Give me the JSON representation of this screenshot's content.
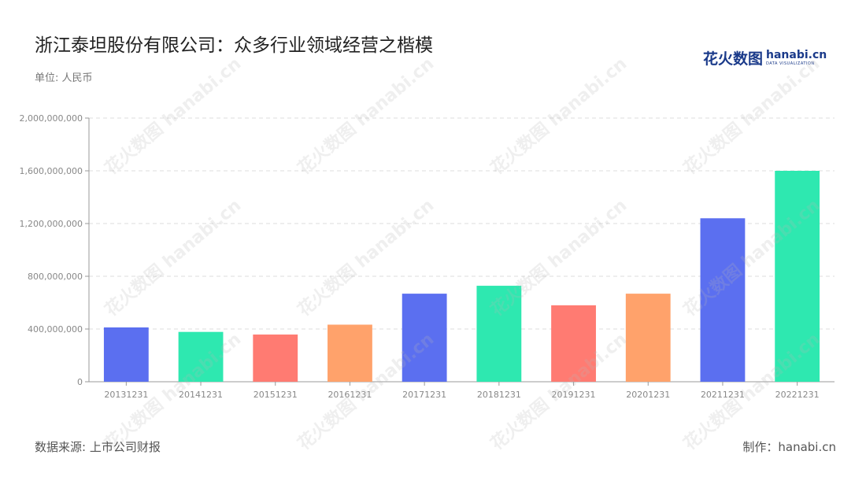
{
  "title": "浙江泰坦股份有限公司：众多行业领域经营之楷模",
  "unit_label": "单位: 人民币",
  "logo": {
    "cn": "花火数图",
    "en": "hanabi.cn",
    "sub": "DATA VISUALIZATION",
    "color": "#1a3a8a"
  },
  "footer": {
    "source": "数据来源: 上市公司财报",
    "credit": "制作：hanabi.cn"
  },
  "chart_data": {
    "type": "bar",
    "categories": [
      "20131231",
      "20141231",
      "20151231",
      "20161231",
      "20171231",
      "20181231",
      "20191231",
      "20201231",
      "20211231",
      "20221231"
    ],
    "values": [
      412000000,
      378000000,
      358000000,
      433000000,
      668000000,
      728000000,
      580000000,
      668000000,
      1240000000,
      1600000000
    ],
    "colors": [
      "#5b6ff0",
      "#2ee8b0",
      "#ff7b72",
      "#ffa26b",
      "#5b6ff0",
      "#2ee8b0",
      "#ff7b72",
      "#ffa26b",
      "#5b6ff0",
      "#2ee8b0"
    ],
    "yticks": [
      "0",
      "400,000,000",
      "800,000,000",
      "1,200,000,000",
      "1,600,000,000",
      "2,000,000,000"
    ],
    "ylim": [
      0,
      2000000000
    ],
    "grid": true,
    "legend": "none",
    "xlabel": "",
    "ylabel": ""
  }
}
